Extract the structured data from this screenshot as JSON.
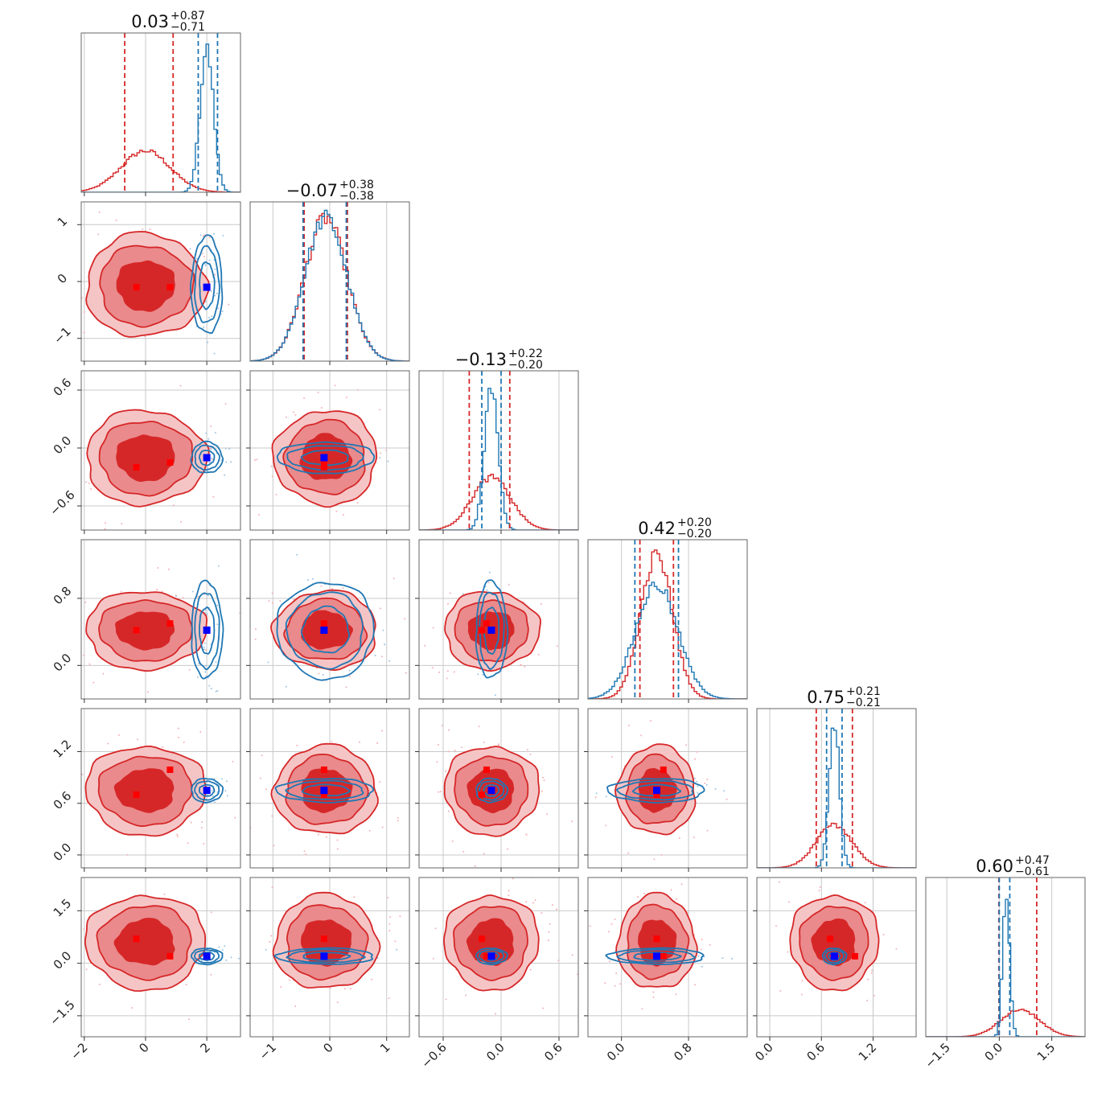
{
  "colors": {
    "red": "#d62728",
    "red_mid": "#ea8a8c",
    "red_light": "#f5c5c6",
    "blue": "#1f77b4",
    "marker_red": "#ff0000",
    "marker_blue": "#0000ff",
    "grid": "#c8c8c8"
  },
  "chart_data": {
    "type": "corner",
    "n_params": 6,
    "parameters": [
      {
        "median": "0.03",
        "plus": "+0.87",
        "minus": "−0.71",
        "range": [
          -2.1,
          3.1
        ],
        "ticks": [
          -2,
          0,
          2
        ],
        "tick_labels": [
          "−2",
          "0",
          "2"
        ],
        "red_mean": 0.0,
        "red_sd": 0.8,
        "blue_mean": 2.0,
        "blue_sd": 0.22,
        "red_q": [
          -0.68,
          0.9
        ],
        "blue_q": [
          1.72,
          2.35
        ],
        "truth": 2.0,
        "red_points": [
          -0.3,
          0.8
        ]
      },
      {
        "median": "−0.07",
        "plus": "+0.38",
        "minus": "−0.38",
        "range": [
          -1.4,
          1.4
        ],
        "ticks": [
          -1,
          0,
          1
        ],
        "tick_labels": [
          "−1",
          "0",
          "1"
        ],
        "red_mean": -0.07,
        "red_sd": 0.37,
        "blue_mean": -0.07,
        "blue_sd": 0.37,
        "red_q": [
          -0.45,
          0.31
        ],
        "blue_q": [
          -0.47,
          0.29
        ],
        "truth": -0.1,
        "red_points": [
          -0.1,
          -0.1
        ]
      },
      {
        "median": "−0.13",
        "plus": "+0.22",
        "minus": "−0.20",
        "range": [
          -0.85,
          0.8
        ],
        "ticks": [
          -0.6,
          0.0,
          0.6
        ],
        "tick_labels": [
          "−0.6",
          "0.0",
          "0.6"
        ],
        "red_mean": -0.1,
        "red_sd": 0.2,
        "blue_mean": -0.1,
        "blue_sd": 0.07,
        "red_q": [
          -0.33,
          0.09
        ],
        "blue_q": [
          -0.2,
          0.0
        ],
        "truth": -0.1,
        "red_points": [
          -0.2,
          -0.15
        ]
      },
      {
        "median": "0.42",
        "plus": "+0.20",
        "minus": "−0.20",
        "range": [
          -0.4,
          1.5
        ],
        "ticks": [
          0.0,
          0.8
        ],
        "tick_labels": [
          "0.0",
          "0.8"
        ],
        "red_mean": 0.42,
        "red_sd": 0.19,
        "blue_mean": 0.42,
        "blue_sd": 0.25,
        "red_q": [
          0.22,
          0.62
        ],
        "blue_q": [
          0.16,
          0.68
        ],
        "truth": 0.42,
        "red_points": [
          0.42,
          0.5
        ]
      },
      {
        "median": "0.75",
        "plus": "+0.21",
        "minus": "−0.21",
        "range": [
          -0.15,
          1.7
        ],
        "ticks": [
          0.0,
          0.6,
          1.2
        ],
        "tick_labels": [
          "0.0",
          "0.6",
          "1.2"
        ],
        "red_mean": 0.75,
        "red_sd": 0.21,
        "blue_mean": 0.75,
        "blue_sd": 0.06,
        "red_q": [
          0.54,
          0.96
        ],
        "blue_q": [
          0.66,
          0.84
        ],
        "truth": 0.75,
        "red_points": [
          0.7,
          0.99
        ]
      },
      {
        "median": "0.60",
        "plus": "+0.47",
        "minus": "−0.61",
        "range": [
          -2.1,
          2.45
        ],
        "ticks": [
          -1.5,
          0.0,
          1.5
        ],
        "tick_labels": [
          "−1.5",
          "0.0",
          "1.5"
        ],
        "red_mean": 0.6,
        "red_sd": 0.55,
        "blue_mean": 0.2,
        "blue_sd": 0.1,
        "red_q": [
          -0.01,
          1.07
        ],
        "blue_q": [
          0.0,
          0.3
        ],
        "truth": 0.2,
        "red_points": [
          0.7,
          0.2
        ]
      }
    ],
    "series": [
      {
        "color": "red",
        "style": "filled contours with step histograms"
      },
      {
        "color": "blue",
        "style": "line contours with step histograms"
      }
    ],
    "truth_marker": "blue square",
    "grid": true,
    "quantile_lines": "dashed"
  }
}
